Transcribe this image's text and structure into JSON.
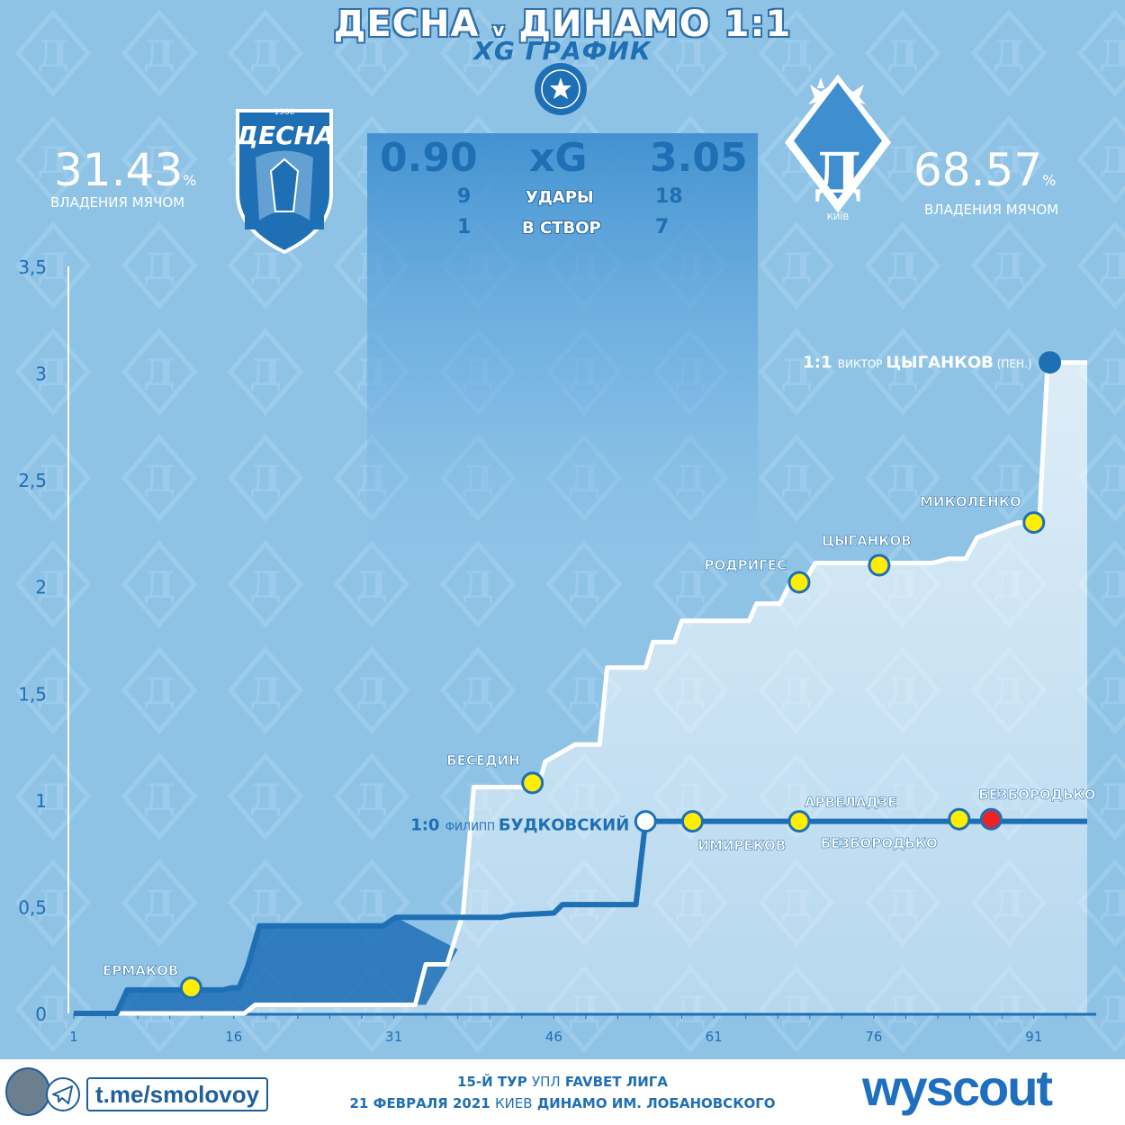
{
  "header": {
    "title_left": "ДЕСНА",
    "title_v": "v",
    "title_right": "ДИНАМО 1:1",
    "subtitle": "XG ГРАФИК",
    "league_badge": "FAVBET ЛІГА"
  },
  "home": {
    "name": "ДЕСНА",
    "founded": "1960",
    "possession": "31.43",
    "possession_label": "ВЛАДЕНИЯ МЯЧОМ",
    "xg": "0.90",
    "shots": "9",
    "on_target": "1"
  },
  "away": {
    "name": "Д",
    "city": "КИЇВ",
    "possession": "68.57",
    "possession_label": "ВЛАДЕНИЯ МЯЧОМ",
    "xg": "3.05",
    "shots": "18",
    "on_target": "7"
  },
  "stats_labels": {
    "xg": "xG",
    "shots": "УДАРЫ",
    "on_target": "В СТВОР",
    "pct": "%"
  },
  "chart_data": {
    "type": "line",
    "x_ticks": [
      "1",
      "16",
      "31",
      "46",
      "61",
      "76",
      "91"
    ],
    "y_ticks": [
      "0",
      "0,5",
      "1",
      "1,5",
      "2",
      "2,5",
      "3",
      "3,5"
    ],
    "xlim": [
      1,
      96
    ],
    "ylim": [
      0,
      3.5
    ],
    "series": [
      {
        "name": "ДЕСНА",
        "color": "#1f6fb5",
        "points": [
          [
            1,
            0
          ],
          [
            5,
            0
          ],
          [
            6,
            0.11
          ],
          [
            15,
            0.11
          ],
          [
            15.8,
            0.12
          ],
          [
            16.5,
            0.12
          ],
          [
            17.3,
            0.22
          ],
          [
            18.4,
            0.41
          ],
          [
            30,
            0.41
          ],
          [
            31.2,
            0.45
          ],
          [
            41,
            0.45
          ],
          [
            42,
            0.46
          ],
          [
            46,
            0.47
          ],
          [
            46.8,
            0.51
          ],
          [
            53.7,
            0.51
          ],
          [
            54.6,
            0.9
          ],
          [
            96,
            0.9
          ]
        ]
      },
      {
        "name": "ДИНАМО",
        "color": "#ffffff",
        "points": [
          [
            1,
            0
          ],
          [
            17,
            0
          ],
          [
            18,
            0.04
          ],
          [
            33,
            0.04
          ],
          [
            34,
            0.23
          ],
          [
            36,
            0.23
          ],
          [
            37.5,
            0.47
          ],
          [
            38.5,
            1.06
          ],
          [
            44.5,
            1.06
          ],
          [
            45.2,
            1.18
          ],
          [
            48,
            1.26
          ],
          [
            50.3,
            1.26
          ],
          [
            51,
            1.62
          ],
          [
            54.6,
            1.62
          ],
          [
            55.3,
            1.74
          ],
          [
            57.3,
            1.74
          ],
          [
            58,
            1.84
          ],
          [
            64.3,
            1.84
          ],
          [
            65,
            1.92
          ],
          [
            67.2,
            1.92
          ],
          [
            68.3,
            2.03
          ],
          [
            69.6,
            2.03
          ],
          [
            70.5,
            2.11
          ],
          [
            77,
            2.11
          ],
          [
            81.5,
            2.11
          ],
          [
            83,
            2.13
          ],
          [
            84.6,
            2.13
          ],
          [
            85.7,
            2.23
          ],
          [
            89.5,
            2.3
          ],
          [
            91.5,
            2.3
          ],
          [
            92.3,
            3.05
          ],
          [
            96,
            3.05
          ]
        ]
      }
    ],
    "events": [
      {
        "team": "ДЕСНА",
        "minute": 12,
        "xg": 0.12,
        "name": "ЕРМАКОВ",
        "kind": "shot",
        "color": "#ffee00"
      },
      {
        "team": "ДИНАМО",
        "minute": 44,
        "xg": 1.08,
        "name": "БЕСЕДИН",
        "kind": "shot",
        "color": "#ffee00"
      },
      {
        "team": "ДЕСНА",
        "minute": 54.6,
        "xg": 0.9,
        "name": "ФИЛИПП БУДКОВСКИЙ",
        "prefix": "1:0",
        "kind": "goal",
        "color": "#ffffff"
      },
      {
        "team": "ДЕСНА",
        "minute": 59,
        "xg": 0.9,
        "name": "ИМИРЕКОВ",
        "kind": "shot",
        "color": "#ffee00"
      },
      {
        "team": "ДИНАМО",
        "minute": 69,
        "xg": 2.02,
        "name": "РОДРИГЕС",
        "kind": "shot",
        "color": "#ffee00"
      },
      {
        "team": "ДЕСНА",
        "minute": 69,
        "xg": 0.9,
        "name": "АРВЕЛАДЗЕ",
        "kind": "shot",
        "color": "#ffee00"
      },
      {
        "team": "ДИНАМО",
        "minute": 76.5,
        "xg": 2.1,
        "name": "ЦЫГАНКОВ",
        "kind": "shot",
        "color": "#ffee00"
      },
      {
        "team": "ДЕСНА",
        "minute": 84,
        "xg": 0.91,
        "name": "БЕЗБОРОДЬКО",
        "kind": "shot",
        "color": "#ffee00"
      },
      {
        "team": "ДЕСНА",
        "minute": 87,
        "xg": 0.91,
        "name": "БЕЗБОРОДЬКО",
        "kind": "shot",
        "color": "#ee2222"
      },
      {
        "team": "ДИНАМО",
        "minute": 91,
        "xg": 2.3,
        "name": "МИКОЛЕНКО",
        "kind": "shot",
        "color": "#ffee00"
      },
      {
        "team": "ДИНАМО",
        "minute": 92.5,
        "xg": 3.05,
        "name": "ЦЫГАНКОВ",
        "first": "ВИКТОР",
        "prefix": "1:1",
        "suffix": "(ПЕН.)",
        "kind": "goal",
        "color": "#1f6fb5"
      }
    ]
  },
  "footer": {
    "telegram": "t.me/smolovoy",
    "line1_bold1": "15-Й ТУР",
    "line1_normal": "УПЛ",
    "line1_bold2": "FAVBET ЛИГА",
    "line2_bold1": "21 ФЕВРАЛЯ 2021",
    "line2_normal": "КИЕВ",
    "line2_bold2": "ДИНАМО ИМ. ЛОБАНОВСКОГО",
    "brand": "wyscout"
  }
}
